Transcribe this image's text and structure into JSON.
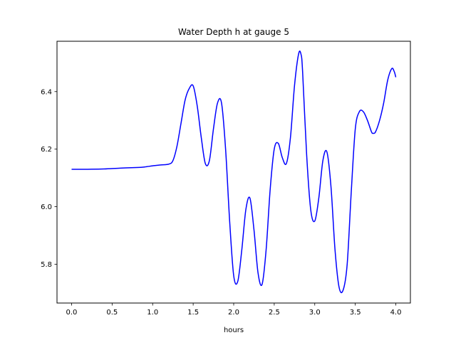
{
  "chart_data": {
    "type": "line",
    "title": "Water Depth h at gauge 5",
    "xlabel": "hours",
    "ylabel": "",
    "xlim": [
      -0.18,
      4.18
    ],
    "ylim": [
      5.665,
      6.575
    ],
    "grid": false,
    "legend": "none",
    "xticks": [
      0.0,
      0.5,
      1.0,
      1.5,
      2.0,
      2.5,
      3.0,
      3.5,
      4.0
    ],
    "xtick_labels": [
      "0.0",
      "0.5",
      "1.0",
      "1.5",
      "2.0",
      "2.5",
      "3.0",
      "3.5",
      "4.0"
    ],
    "yticks": [
      5.8,
      6.0,
      6.2,
      6.4
    ],
    "ytick_labels": [
      "5.8",
      "6.0",
      "6.2",
      "6.4"
    ],
    "series": [
      {
        "color": "#0000ff",
        "x": [
          0.0,
          0.2,
          0.4,
          0.6,
          0.8,
          0.9,
          1.0,
          1.1,
          1.2,
          1.25,
          1.3,
          1.35,
          1.4,
          1.45,
          1.5,
          1.55,
          1.6,
          1.65,
          1.7,
          1.75,
          1.8,
          1.85,
          1.9,
          1.95,
          2.0,
          2.05,
          2.1,
          2.15,
          2.2,
          2.25,
          2.3,
          2.35,
          2.4,
          2.45,
          2.5,
          2.55,
          2.6,
          2.65,
          2.7,
          2.75,
          2.8,
          2.83,
          2.85,
          2.9,
          2.95,
          3.0,
          3.05,
          3.1,
          3.15,
          3.2,
          3.25,
          3.3,
          3.35,
          3.4,
          3.45,
          3.5,
          3.55,
          3.6,
          3.65,
          3.7,
          3.72,
          3.75,
          3.8,
          3.85,
          3.9,
          3.95,
          3.98,
          4.0
        ],
        "y": [
          6.13,
          6.13,
          6.131,
          6.134,
          6.136,
          6.138,
          6.142,
          6.145,
          6.148,
          6.16,
          6.21,
          6.29,
          6.37,
          6.41,
          6.42,
          6.35,
          6.24,
          6.15,
          6.16,
          6.27,
          6.36,
          6.36,
          6.2,
          5.95,
          5.76,
          5.74,
          5.85,
          5.99,
          6.03,
          5.92,
          5.77,
          5.73,
          5.85,
          6.06,
          6.2,
          6.22,
          6.17,
          6.15,
          6.24,
          6.42,
          6.53,
          6.53,
          6.47,
          6.18,
          5.99,
          5.95,
          6.03,
          6.16,
          6.19,
          6.07,
          5.85,
          5.72,
          5.71,
          5.8,
          6.05,
          6.27,
          6.33,
          6.33,
          6.3,
          6.26,
          6.255,
          6.26,
          6.3,
          6.36,
          6.44,
          6.48,
          6.47,
          6.45
        ]
      }
    ]
  }
}
